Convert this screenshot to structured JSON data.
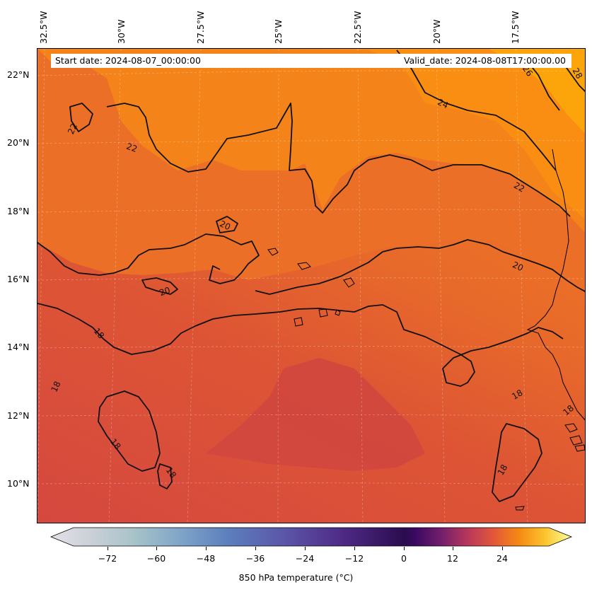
{
  "map": {
    "lon_labels": [
      "32.5°W",
      "30°W",
      "27.5°W",
      "25°W",
      "22.5°W",
      "20°W",
      "17.5°W"
    ],
    "lat_labels": [
      "22°N",
      "20°N",
      "18°N",
      "16°N",
      "14°N",
      "12°N",
      "10°N"
    ],
    "start_date": "Start date: 2024-08-07_00:00:00",
    "valid_date": "Valid_date: 2024-08-08T17:00:00.00",
    "contour_labels": [
      "18",
      "18",
      "18",
      "18",
      "18",
      "18",
      "18",
      "20",
      "20",
      "20",
      "22",
      "22",
      "22",
      "24",
      "26",
      "28"
    ]
  },
  "colorbar": {
    "ticks": [
      "−72",
      "−60",
      "−48",
      "−36",
      "−24",
      "−12",
      "0",
      "12",
      "24"
    ],
    "label": "850 hPa temperature (°C)"
  },
  "colors": {
    "field_cool": "#d5483f",
    "field_mid": "#e35f30",
    "field_warm": "#ee7424",
    "field_hot": "#f98e12",
    "field_hottest": "#fca50a",
    "contour": "#111111"
  }
}
